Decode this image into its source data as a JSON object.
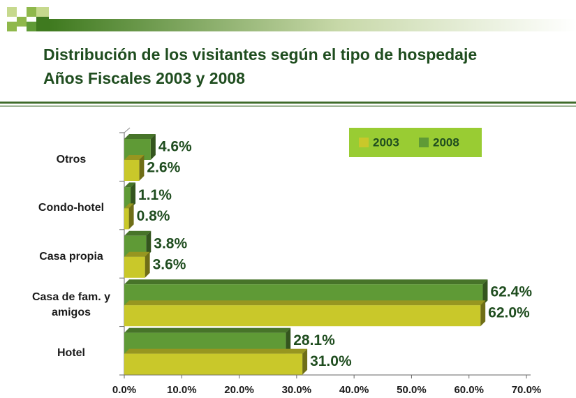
{
  "chart_data": {
    "type": "bar",
    "orientation": "horizontal",
    "title": "Distribución de los visitantes según el tipo de hospedaje",
    "subtitle": "Años Fiscales 2003 y 2008",
    "categories": [
      "Otros",
      "Condo-hotel",
      "Casa propia",
      "Casa de fam. y amigos",
      "Hotel"
    ],
    "series": [
      {
        "name": "2008",
        "color": "#5f9a36",
        "values": [
          4.6,
          1.1,
          3.8,
          62.4,
          28.1
        ],
        "value_labels": [
          "4.6%",
          "1.1%",
          "3.8%",
          "62.4%",
          "28.1%"
        ]
      },
      {
        "name": "2003",
        "color": "#c9c82a",
        "values": [
          2.6,
          0.8,
          3.6,
          62.0,
          31.0
        ],
        "value_labels": [
          "2.6%",
          "0.8%",
          "3.6%",
          "62.0%",
          "31.0%"
        ]
      }
    ],
    "xlim": [
      0,
      70
    ],
    "xticks": [
      {
        "value": 0,
        "label": "0.0%"
      },
      {
        "value": 10,
        "label": "10.0%"
      },
      {
        "value": 20,
        "label": "20.0%"
      },
      {
        "value": 30,
        "label": "30.0%"
      },
      {
        "value": 40,
        "label": "40.0%"
      },
      {
        "value": 50,
        "label": "50.0%"
      },
      {
        "value": 60,
        "label": "60.0%"
      },
      {
        "value": 70,
        "label": "70.0%"
      }
    ],
    "legend": "top-right"
  }
}
